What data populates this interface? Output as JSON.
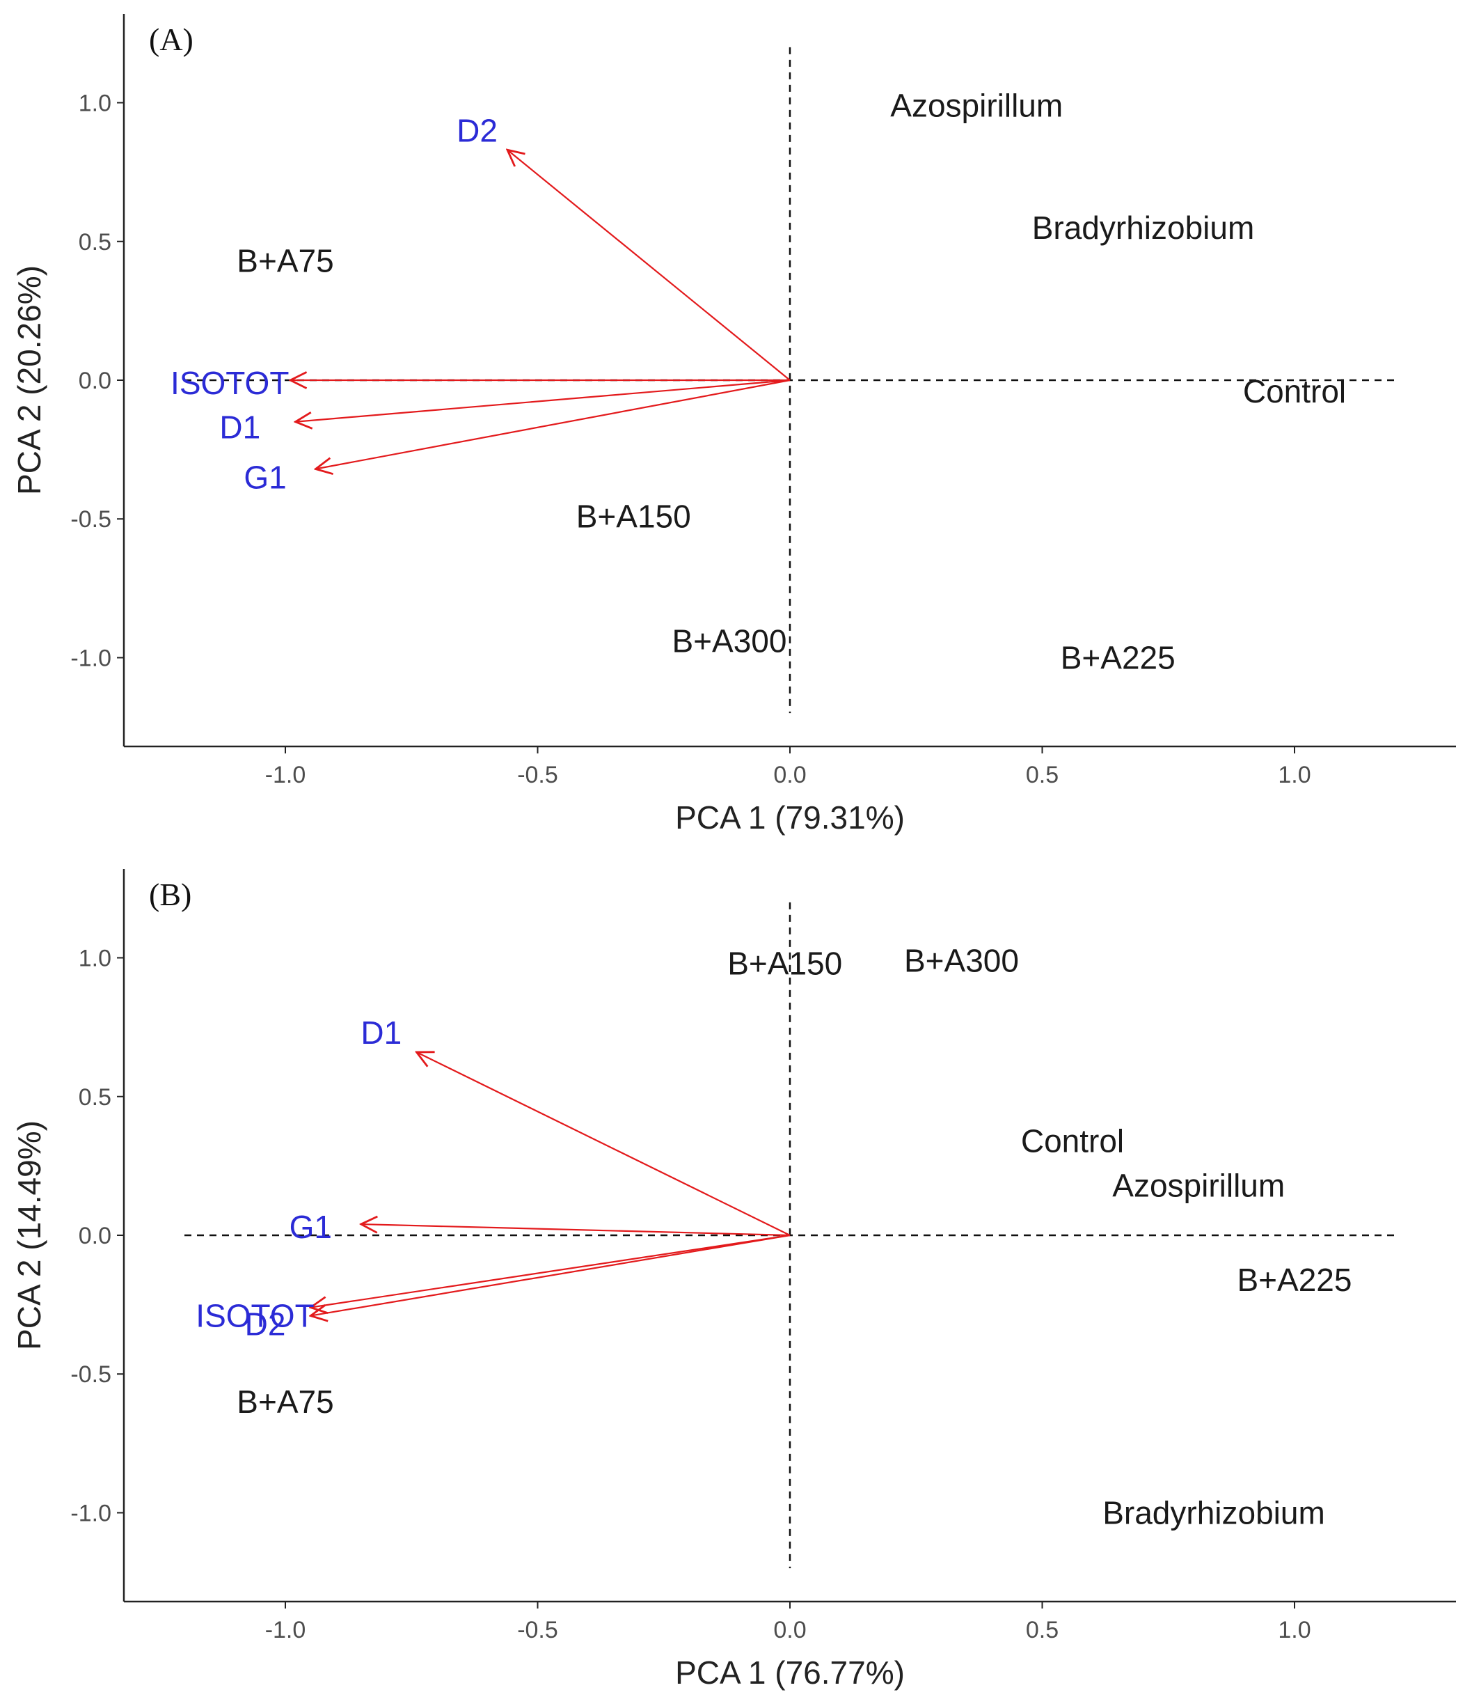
{
  "colors": {
    "arrow": "#e31a1c",
    "variable_label": "#2b2bd6",
    "observation_label": "#1a1a1a",
    "axis": "#222222",
    "reference_line": "#111111"
  },
  "chart_data": [
    {
      "type": "scatter",
      "subtype": "pca-biplot",
      "panel_label": "(A)",
      "xlabel": "PCA 1 (79.31%)",
      "ylabel": "PCA 2 (20.26%)",
      "xlim": [
        -1.32,
        1.32
      ],
      "ylim": [
        -1.32,
        1.32
      ],
      "xticks": [
        -1.0,
        -0.5,
        0.0,
        0.5,
        1.0
      ],
      "yticks": [
        -1.0,
        -0.5,
        0.0,
        0.5,
        1.0
      ],
      "reference_lines": {
        "vertical": {
          "x": 0,
          "y_range": [
            -1.2,
            1.2
          ]
        },
        "horizontal": {
          "y": 0,
          "x_range": [
            -1.2,
            1.2
          ]
        }
      },
      "observations": [
        {
          "label": "Azospirillum",
          "x": 0.37,
          "y": 0.99
        },
        {
          "label": "Bradyrhizobium",
          "x": 0.7,
          "y": 0.55
        },
        {
          "label": "B+A75",
          "x": -1.0,
          "y": 0.43
        },
        {
          "label": "Control",
          "x": 1.0,
          "y": -0.04
        },
        {
          "label": "B+A150",
          "x": -0.31,
          "y": -0.49
        },
        {
          "label": "B+A300",
          "x": -0.12,
          "y": -0.94
        },
        {
          "label": "B+A225",
          "x": 0.65,
          "y": -1.0
        }
      ],
      "variables": [
        {
          "label": "D2",
          "x": -0.56,
          "y": 0.83,
          "label_x": -0.62,
          "label_y": 0.9
        },
        {
          "label": "ISOTOT",
          "x": -0.99,
          "y": 0.0,
          "label_x": -1.11,
          "label_y": -0.01
        },
        {
          "label": "D1",
          "x": -0.98,
          "y": -0.15,
          "label_x": -1.09,
          "label_y": -0.17
        },
        {
          "label": "G1",
          "x": -0.94,
          "y": -0.32,
          "label_x": -1.04,
          "label_y": -0.35
        }
      ]
    },
    {
      "type": "scatter",
      "subtype": "pca-biplot",
      "panel_label": "(B)",
      "xlabel": "PCA 1 (76.77%)",
      "ylabel": "PCA 2 (14.49%)",
      "xlim": [
        -1.32,
        1.32
      ],
      "ylim": [
        -1.32,
        1.32
      ],
      "xticks": [
        -1.0,
        -0.5,
        0.0,
        0.5,
        1.0
      ],
      "yticks": [
        -1.0,
        -0.5,
        0.0,
        0.5,
        1.0
      ],
      "reference_lines": {
        "vertical": {
          "x": 0,
          "y_range": [
            -1.2,
            1.2
          ]
        },
        "horizontal": {
          "y": 0,
          "x_range": [
            -1.2,
            1.2
          ]
        }
      },
      "observations": [
        {
          "label": "B+A150",
          "x": -0.01,
          "y": 0.98
        },
        {
          "label": "B+A300",
          "x": 0.34,
          "y": 0.99
        },
        {
          "label": "Control",
          "x": 0.56,
          "y": 0.34
        },
        {
          "label": "Azospirillum",
          "x": 0.81,
          "y": 0.18
        },
        {
          "label": "B+A225",
          "x": 1.0,
          "y": -0.16
        },
        {
          "label": "B+A75",
          "x": -1.0,
          "y": -0.6
        },
        {
          "label": "Bradyrhizobium",
          "x": 0.84,
          "y": -1.0
        }
      ],
      "variables": [
        {
          "label": "D1",
          "x": -0.74,
          "y": 0.66,
          "label_x": -0.81,
          "label_y": 0.73
        },
        {
          "label": "G1",
          "x": -0.85,
          "y": 0.04,
          "label_x": -0.95,
          "label_y": 0.03
        },
        {
          "label": "ISOTOT",
          "x": -0.95,
          "y": -0.26,
          "label_x": -1.06,
          "label_y": -0.29
        },
        {
          "label": "D2",
          "x": -0.95,
          "y": -0.29,
          "label_x": -1.04,
          "label_y": -0.32
        }
      ]
    }
  ]
}
